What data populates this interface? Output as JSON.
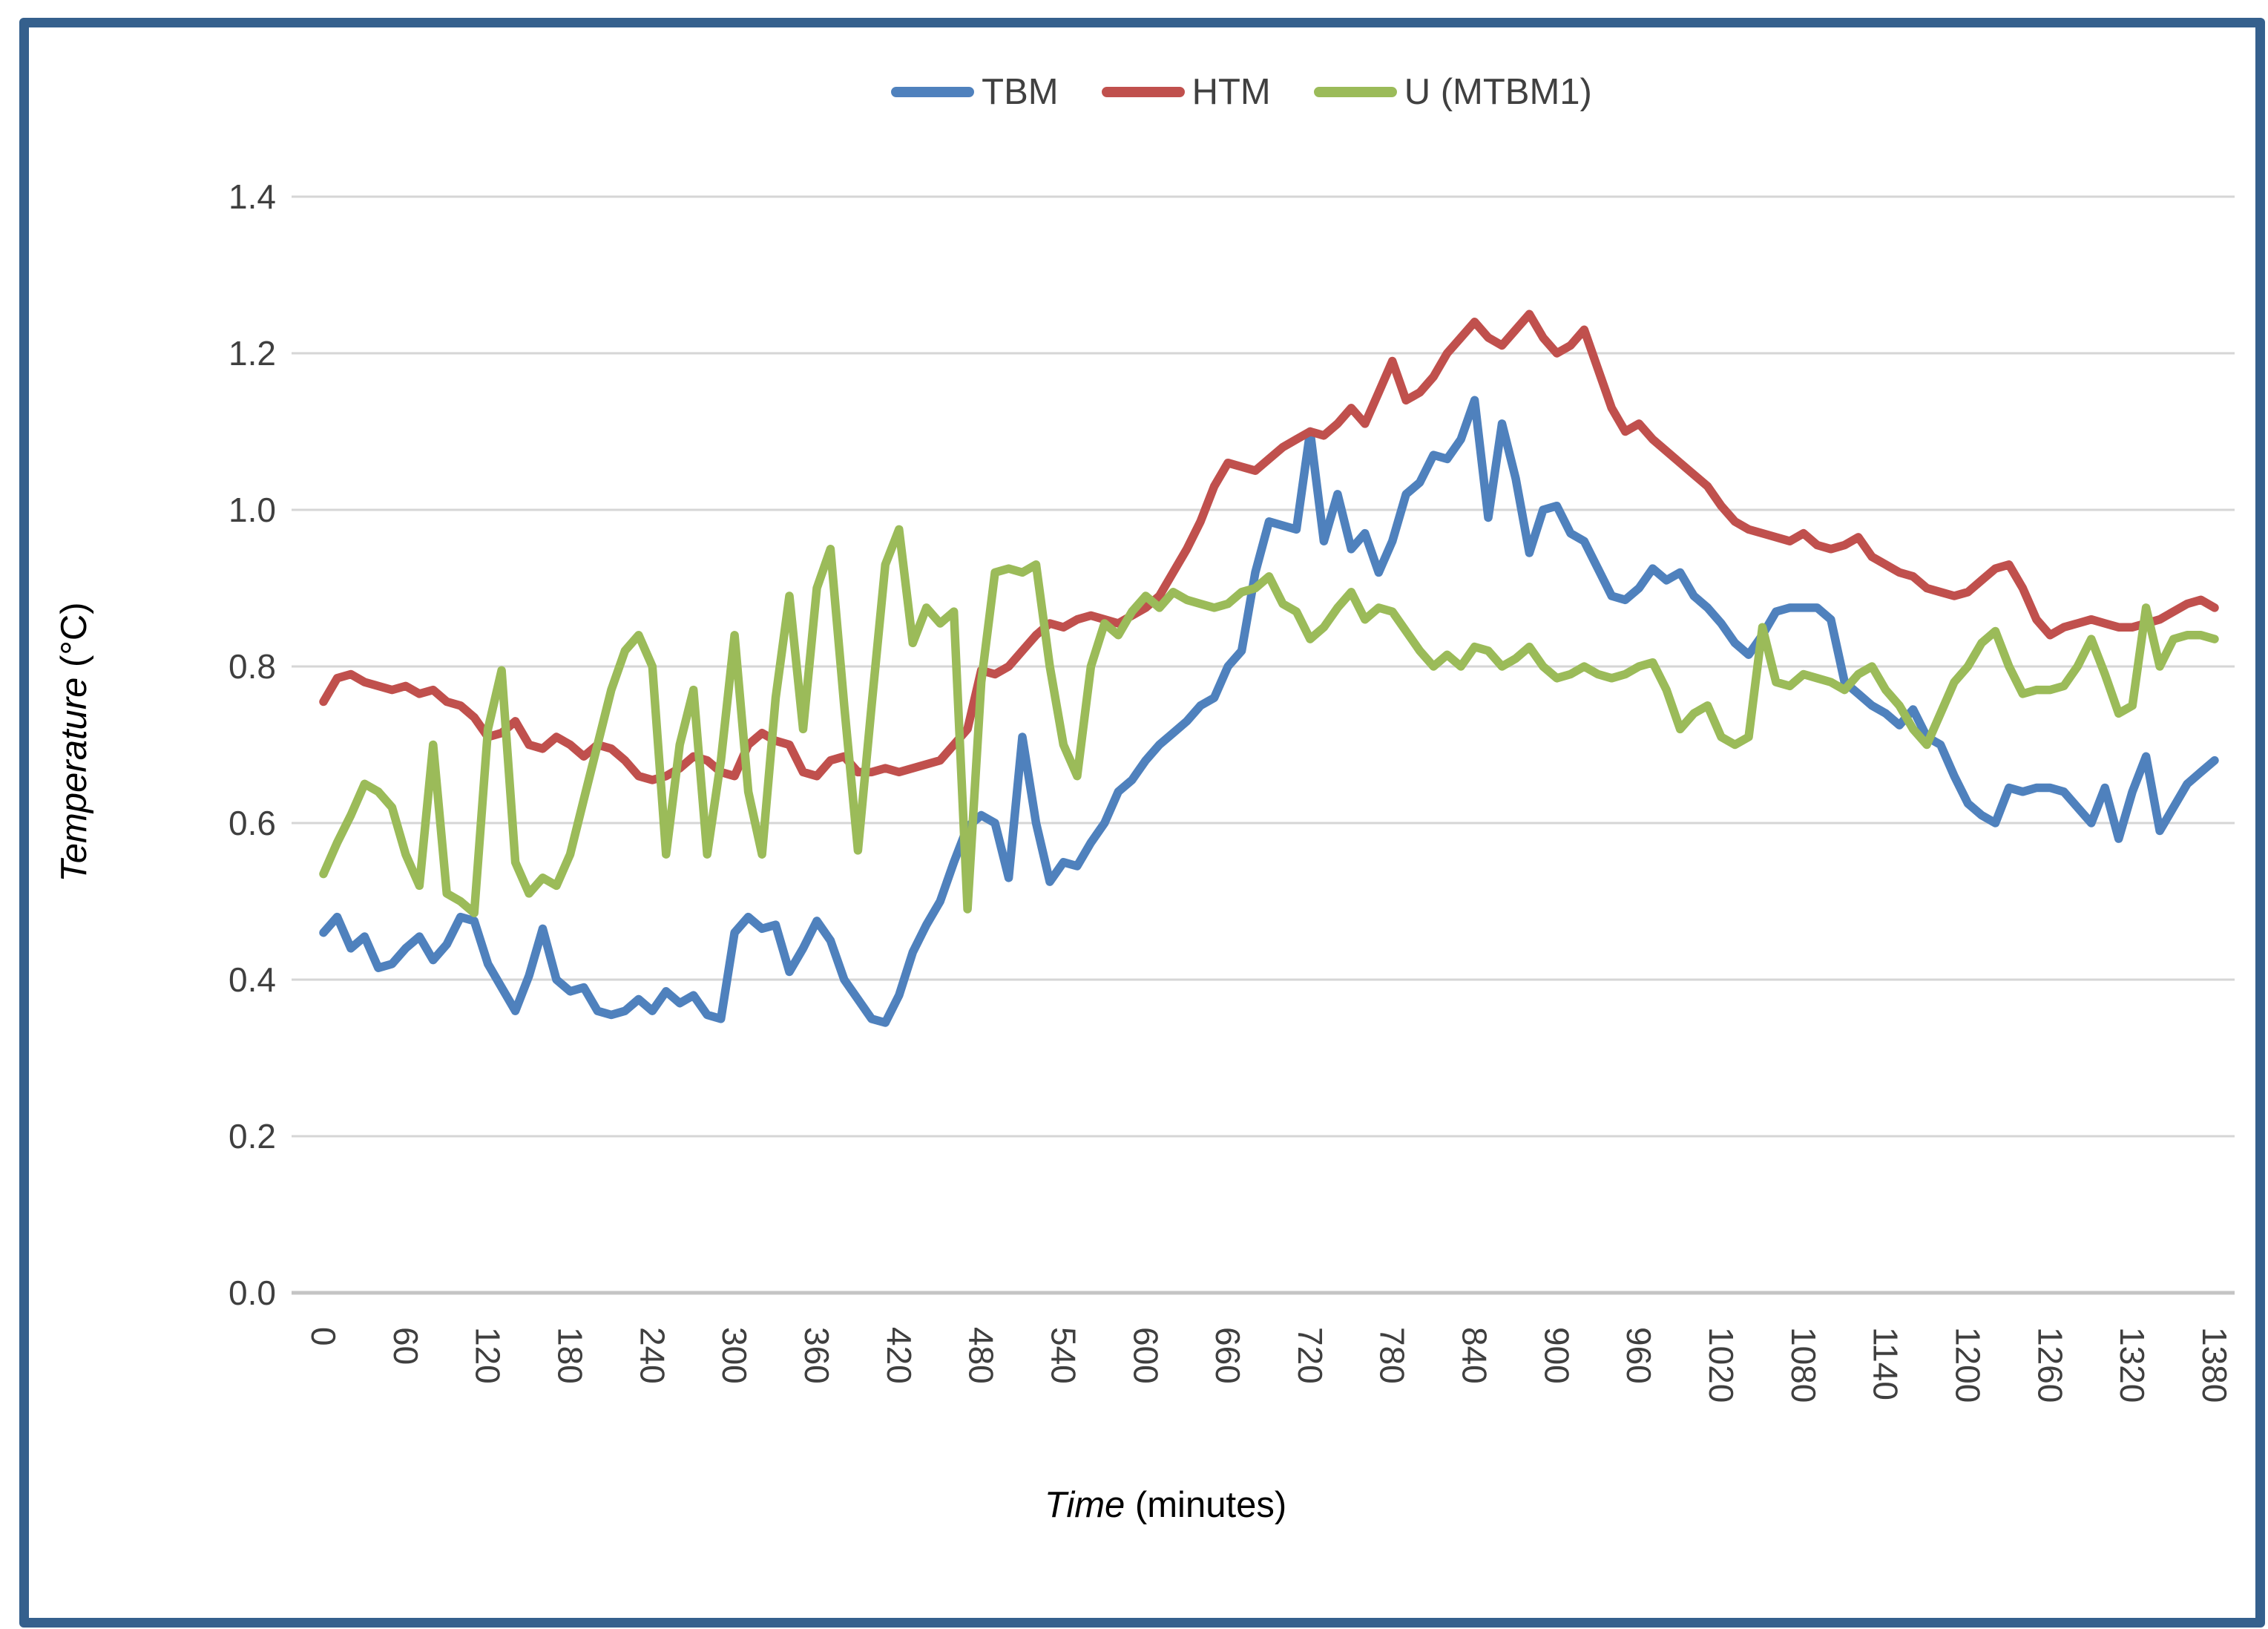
{
  "legend": {
    "items": [
      {
        "label": "TBM"
      },
      {
        "label": "HTM"
      },
      {
        "label": "U (MTBM1)"
      }
    ]
  },
  "y_axis": {
    "title_italic": "Temperature",
    "title_rest": " (°C)",
    "ticks": [
      "0.0",
      "0.2",
      "0.4",
      "0.6",
      "0.8",
      "1.0",
      "1.2",
      "1.4"
    ]
  },
  "x_axis": {
    "title_italic": "Time",
    "title_rest": " (minutes)",
    "ticks": [
      "0",
      "60",
      "120",
      "180",
      "240",
      "300",
      "360",
      "420",
      "480",
      "540",
      "600",
      "660",
      "720",
      "780",
      "840",
      "900",
      "960",
      "1020",
      "1080",
      "1140",
      "1200",
      "1260",
      "1320",
      "1380"
    ]
  },
  "colors": {
    "border": "#35608D",
    "gridline": "#D6D6D6",
    "baseline": "#C4C4C4",
    "tick_text": "#3F3F3F"
  },
  "chart_data": {
    "type": "line",
    "title": "",
    "xlabel": "Time (minutes)",
    "ylabel": "Temperature (°C)",
    "xlim": [
      0,
      1380
    ],
    "ylim": [
      0,
      1.4
    ],
    "x_start": 0,
    "x_step": 10,
    "grid": "horizontal",
    "legend_position": "top",
    "series": [
      {
        "name": "TBM",
        "color": "#4F81BD",
        "values": [
          0.46,
          0.48,
          0.44,
          0.455,
          0.415,
          0.42,
          0.44,
          0.455,
          0.425,
          0.445,
          0.48,
          0.475,
          0.42,
          0.39,
          0.36,
          0.405,
          0.465,
          0.4,
          0.385,
          0.39,
          0.36,
          0.355,
          0.36,
          0.375,
          0.36,
          0.385,
          0.37,
          0.38,
          0.355,
          0.35,
          0.46,
          0.48,
          0.465,
          0.47,
          0.41,
          0.44,
          0.475,
          0.45,
          0.4,
          0.375,
          0.35,
          0.345,
          0.38,
          0.435,
          0.47,
          0.5,
          0.55,
          0.595,
          0.61,
          0.6,
          0.53,
          0.71,
          0.6,
          0.525,
          0.55,
          0.545,
          0.575,
          0.6,
          0.64,
          0.655,
          0.68,
          0.7,
          0.715,
          0.73,
          0.75,
          0.76,
          0.8,
          0.82,
          0.92,
          0.985,
          0.98,
          0.975,
          1.1,
          0.96,
          1.02,
          0.95,
          0.97,
          0.92,
          0.96,
          1.02,
          1.035,
          1.07,
          1.065,
          1.09,
          1.14,
          0.99,
          1.11,
          1.04,
          0.945,
          1.0,
          1.005,
          0.97,
          0.96,
          0.925,
          0.89,
          0.885,
          0.9,
          0.925,
          0.91,
          0.92,
          0.89,
          0.875,
          0.855,
          0.83,
          0.815,
          0.84,
          0.87,
          0.875,
          0.875,
          0.875,
          0.86,
          0.78,
          0.765,
          0.75,
          0.74,
          0.725,
          0.745,
          0.71,
          0.7,
          0.66,
          0.625,
          0.61,
          0.6,
          0.645,
          0.64,
          0.645,
          0.645,
          0.64,
          0.62,
          0.6,
          0.645,
          0.58,
          0.64,
          0.685,
          0.59,
          0.62,
          0.65,
          0.665,
          0.68
        ]
      },
      {
        "name": "HTM",
        "color": "#C0504D",
        "values": [
          0.755,
          0.785,
          0.79,
          0.78,
          0.775,
          0.77,
          0.775,
          0.765,
          0.77,
          0.755,
          0.75,
          0.735,
          0.71,
          0.715,
          0.73,
          0.7,
          0.695,
          0.71,
          0.7,
          0.685,
          0.7,
          0.695,
          0.68,
          0.66,
          0.655,
          0.66,
          0.67,
          0.685,
          0.68,
          0.665,
          0.66,
          0.7,
          0.715,
          0.705,
          0.7,
          0.665,
          0.66,
          0.68,
          0.685,
          0.665,
          0.665,
          0.67,
          0.665,
          0.67,
          0.675,
          0.68,
          0.7,
          0.72,
          0.795,
          0.79,
          0.8,
          0.82,
          0.84,
          0.855,
          0.85,
          0.86,
          0.865,
          0.86,
          0.855,
          0.865,
          0.875,
          0.89,
          0.92,
          0.95,
          0.985,
          1.03,
          1.06,
          1.055,
          1.05,
          1.065,
          1.08,
          1.09,
          1.1,
          1.095,
          1.11,
          1.13,
          1.11,
          1.15,
          1.19,
          1.14,
          1.15,
          1.17,
          1.2,
          1.22,
          1.24,
          1.22,
          1.21,
          1.23,
          1.25,
          1.22,
          1.2,
          1.21,
          1.23,
          1.18,
          1.13,
          1.1,
          1.11,
          1.09,
          1.075,
          1.06,
          1.045,
          1.03,
          1.005,
          0.985,
          0.975,
          0.97,
          0.965,
          0.96,
          0.97,
          0.955,
          0.95,
          0.955,
          0.965,
          0.94,
          0.93,
          0.92,
          0.915,
          0.9,
          0.895,
          0.89,
          0.895,
          0.91,
          0.925,
          0.93,
          0.9,
          0.86,
          0.84,
          0.85,
          0.855,
          0.86,
          0.855,
          0.85,
          0.85,
          0.855,
          0.86,
          0.87,
          0.88,
          0.885,
          0.875
        ]
      },
      {
        "name": "U (MTBM1)",
        "color": "#9BBB59",
        "values": [
          0.535,
          0.575,
          0.61,
          0.65,
          0.64,
          0.62,
          0.56,
          0.52,
          0.7,
          0.51,
          0.5,
          0.485,
          0.72,
          0.795,
          0.55,
          0.51,
          0.53,
          0.52,
          0.56,
          0.63,
          0.7,
          0.77,
          0.82,
          0.84,
          0.8,
          0.56,
          0.7,
          0.77,
          0.56,
          0.68,
          0.84,
          0.64,
          0.56,
          0.76,
          0.89,
          0.72,
          0.9,
          0.95,
          0.75,
          0.565,
          0.75,
          0.93,
          0.975,
          0.83,
          0.875,
          0.855,
          0.87,
          0.49,
          0.78,
          0.92,
          0.925,
          0.92,
          0.93,
          0.8,
          0.7,
          0.66,
          0.8,
          0.855,
          0.84,
          0.87,
          0.89,
          0.875,
          0.895,
          0.885,
          0.88,
          0.875,
          0.88,
          0.895,
          0.9,
          0.915,
          0.88,
          0.87,
          0.835,
          0.85,
          0.875,
          0.895,
          0.86,
          0.875,
          0.87,
          0.845,
          0.82,
          0.8,
          0.815,
          0.8,
          0.825,
          0.82,
          0.8,
          0.81,
          0.825,
          0.8,
          0.785,
          0.79,
          0.8,
          0.79,
          0.785,
          0.79,
          0.8,
          0.805,
          0.77,
          0.72,
          0.74,
          0.75,
          0.71,
          0.7,
          0.71,
          0.85,
          0.78,
          0.775,
          0.79,
          0.785,
          0.78,
          0.77,
          0.79,
          0.8,
          0.77,
          0.75,
          0.72,
          0.7,
          0.74,
          0.78,
          0.8,
          0.83,
          0.845,
          0.8,
          0.765,
          0.77,
          0.77,
          0.775,
          0.8,
          0.835,
          0.79,
          0.74,
          0.75,
          0.875,
          0.8,
          0.835,
          0.84,
          0.84,
          0.835
        ]
      }
    ]
  }
}
